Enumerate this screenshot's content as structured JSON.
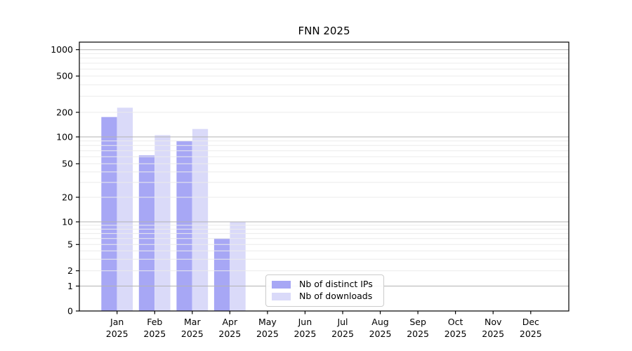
{
  "page": {
    "background": "#ffffff"
  },
  "chart_data": {
    "type": "bar",
    "title": "FNN 2025",
    "xlabel": "",
    "ylabel": "",
    "yscale": "symlog",
    "ylim": [
      0,
      1500
    ],
    "grid": true,
    "legend_position": "inside lower-center",
    "y_ticks": [
      0,
      1,
      2,
      5,
      10,
      20,
      50,
      100,
      200,
      500,
      1000
    ],
    "categories": [
      {
        "month": "Jan",
        "year": "2025"
      },
      {
        "month": "Feb",
        "year": "2025"
      },
      {
        "month": "Mar",
        "year": "2025"
      },
      {
        "month": "Apr",
        "year": "2025"
      },
      {
        "month": "May",
        "year": "2025"
      },
      {
        "month": "Jun",
        "year": "2025"
      },
      {
        "month": "Jul",
        "year": "2025"
      },
      {
        "month": "Aug",
        "year": "2025"
      },
      {
        "month": "Sep",
        "year": "2025"
      },
      {
        "month": "Oct",
        "year": "2025"
      },
      {
        "month": "Nov",
        "year": "2025"
      },
      {
        "month": "Dec",
        "year": "2025"
      }
    ],
    "series": [
      {
        "key": "distinct-ips",
        "name": "Nb of distinct IPs",
        "color": "#a7a7f5",
        "values": [
          175,
          62,
          90,
          6,
          0,
          0,
          0,
          0,
          0,
          0,
          0,
          0
        ]
      },
      {
        "key": "downloads",
        "name": "Nb of downloads",
        "color": "#dadaf9",
        "values": [
          225,
          105,
          125,
          10,
          0,
          0,
          0,
          0,
          0,
          0,
          0,
          0
        ]
      }
    ],
    "colors": {
      "grid_major": "#b3b3b3",
      "grid_minor": "#ebebeb",
      "axis": "#000000",
      "legend_border": "#cccccc"
    }
  }
}
